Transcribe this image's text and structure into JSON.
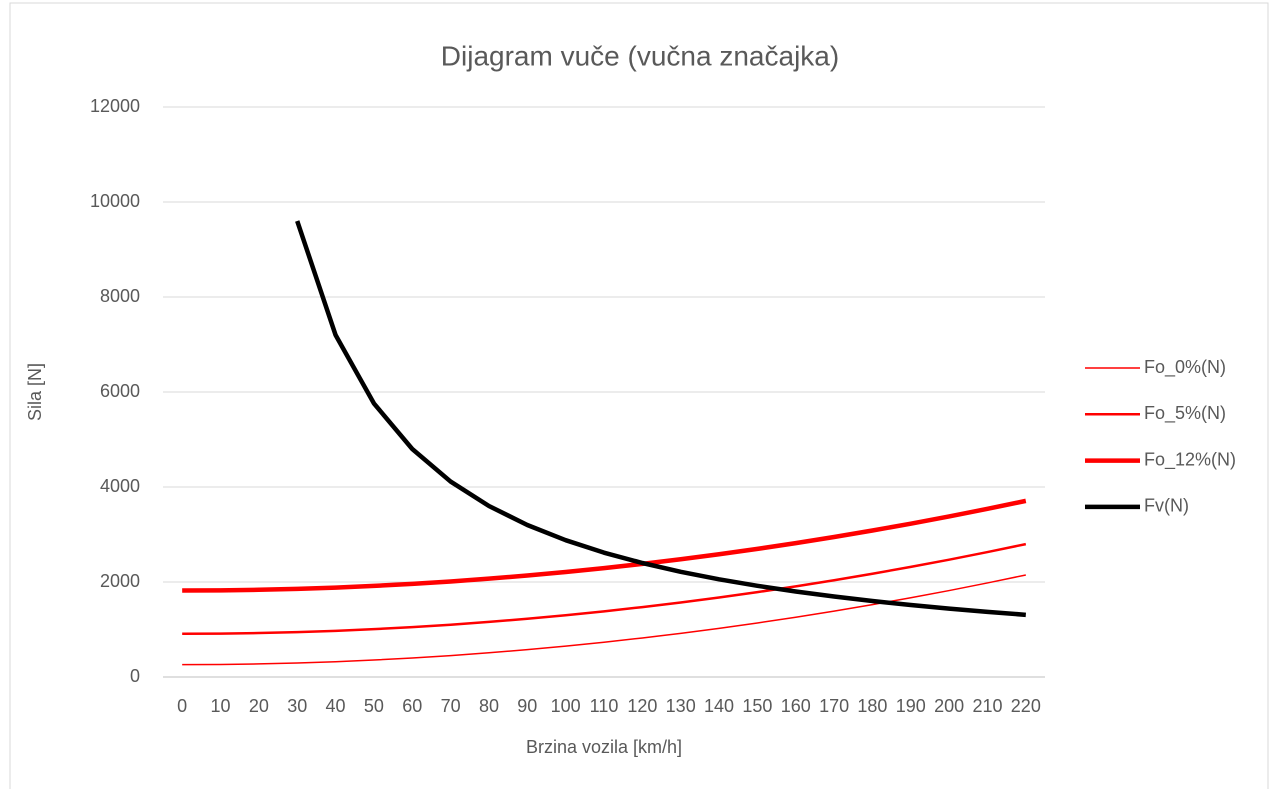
{
  "chart_data": {
    "type": "line",
    "title": "Dijagram vuče (vučna značajka)",
    "x_label": "Brzina vozila [km/h]",
    "y_label": "Sila [N]",
    "categories": [
      "0",
      "10",
      "20",
      "30",
      "40",
      "50",
      "60",
      "70",
      "80",
      "90",
      "100",
      "110",
      "120",
      "130",
      "140",
      "150",
      "160",
      "170",
      "180",
      "190",
      "200",
      "210",
      "220"
    ],
    "series": [
      {
        "name": "Fo_0%(N)",
        "color": "#ff0000",
        "width": 1.5,
        "values": [
          260,
          264,
          276,
          295,
          322,
          358,
          400,
          451,
          510,
          576,
          650,
          732,
          822,
          919,
          1024,
          1137,
          1258,
          1387,
          1524,
          1668,
          1820,
          1980,
          2148
        ]
      },
      {
        "name": "Fo_5%(N)",
        "color": "#ff0000",
        "width": 2.5,
        "values": [
          910,
          914,
          926,
          945,
          972,
          1008,
          1050,
          1101,
          1160,
          1226,
          1300,
          1382,
          1472,
          1569,
          1674,
          1787,
          1908,
          2037,
          2174,
          2318,
          2470,
          2630,
          2798
        ]
      },
      {
        "name": "Fo_12%(N)",
        "color": "#ff0000",
        "width": 4.5,
        "values": [
          1820,
          1824,
          1836,
          1855,
          1882,
          1918,
          1960,
          2011,
          2070,
          2136,
          2210,
          2292,
          2382,
          2479,
          2584,
          2697,
          2818,
          2947,
          3084,
          3228,
          3380,
          3540,
          3708
        ]
      },
      {
        "name": "Fv(N)",
        "color": "#000000",
        "width": 4.5,
        "values": [
          null,
          null,
          null,
          9600,
          7200,
          5760,
          4800,
          4114,
          3600,
          3200,
          2880,
          2618,
          2400,
          2215,
          2057,
          1920,
          1800,
          1694,
          1600,
          1516,
          1440,
          1371,
          1309
        ]
      }
    ],
    "ylim": [
      0,
      12000
    ],
    "yticks": [
      0,
      2000,
      4000,
      6000,
      8000,
      10000,
      12000
    ],
    "grid": true,
    "legend": "right"
  }
}
